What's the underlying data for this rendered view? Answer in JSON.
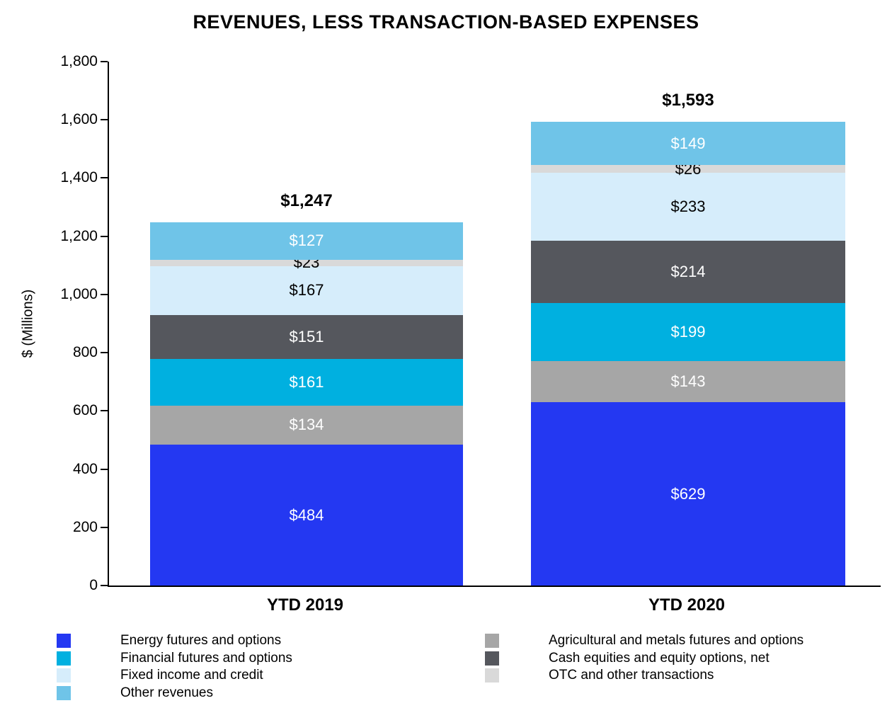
{
  "chart_data": {
    "type": "bar",
    "stacked": true,
    "title": "REVENUES, LESS TRANSACTION-BASED EXPENSES",
    "ylabel": "$ (Millions)",
    "ylim": [
      0,
      1800
    ],
    "ytick_step": 200,
    "ytick_labels": [
      "0",
      "200",
      "400",
      "600",
      "800",
      "1,000",
      "1,200",
      "1,400",
      "1,600",
      "1,800"
    ],
    "grid": false,
    "categories": [
      "YTD 2019",
      "YTD 2020"
    ],
    "totals": [
      "$1,247",
      "$1,593"
    ],
    "series": [
      {
        "name": "Energy futures and options",
        "color": "#2438F2",
        "label_color": "#ffffff",
        "values": [
          484,
          629
        ]
      },
      {
        "name": "Agricultural and metals futures and options",
        "color": "#A6A6A6",
        "label_color": "#ffffff",
        "values": [
          134,
          143
        ]
      },
      {
        "name": "Financial futures and options",
        "color": "#00B0E0",
        "label_color": "#ffffff",
        "values": [
          161,
          199
        ]
      },
      {
        "name": "Cash equities and equity options, net",
        "color": "#55575D",
        "label_color": "#ffffff",
        "values": [
          151,
          214
        ]
      },
      {
        "name": "Fixed income and credit",
        "color": "#D6EDFB",
        "label_color": "#000000",
        "values": [
          167,
          233
        ]
      },
      {
        "name": "OTC and other transactions",
        "color": "#D9D9D9",
        "label_color": "#000000",
        "values": [
          23,
          26
        ]
      },
      {
        "name": "Other revenues",
        "color": "#6FC4E8",
        "label_color": "#ffffff",
        "values": [
          127,
          149
        ]
      }
    ],
    "legend": {
      "position": "bottom",
      "left_column": [
        "Energy futures and options",
        "Financial futures and options",
        "Fixed income and credit",
        "Other revenues"
      ],
      "right_column": [
        "Agricultural and metals futures and options",
        "Cash equities and equity options, net",
        "OTC and other transactions"
      ]
    }
  }
}
